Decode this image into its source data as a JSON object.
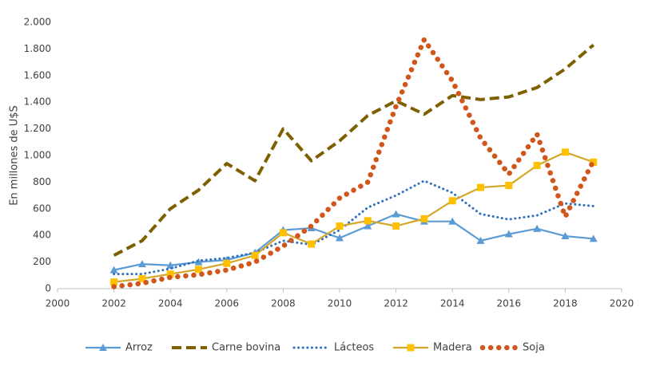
{
  "chart_data": {
    "type": "line",
    "ylabel": "En millones de U$S",
    "x": [
      2002,
      2003,
      2004,
      2005,
      2006,
      2007,
      2008,
      2009,
      2010,
      2011,
      2012,
      2013,
      2014,
      2015,
      2016,
      2017,
      2018,
      2019
    ],
    "series": [
      {
        "name": "Arroz",
        "color": "#5b9bd5",
        "style": "solid",
        "marker": "triangle",
        "values": [
          140,
          185,
          175,
          200,
          215,
          270,
          440,
          455,
          380,
          470,
          560,
          505,
          505,
          360,
          410,
          450,
          395,
          375
        ]
      },
      {
        "name": "Carne bovina",
        "color": "#7f6000",
        "style": "dashed",
        "marker": "none",
        "values": [
          250,
          360,
          600,
          740,
          940,
          810,
          1200,
          960,
          1110,
          1300,
          1410,
          1310,
          1450,
          1420,
          1440,
          1510,
          1650,
          1830
        ]
      },
      {
        "name": "Lácteos",
        "color": "#2e6fc0",
        "style": "dotted",
        "marker": "none",
        "values": [
          110,
          110,
          150,
          210,
          230,
          270,
          360,
          330,
          440,
          610,
          700,
          810,
          720,
          560,
          520,
          550,
          640,
          620
        ]
      },
      {
        "name": "Madera",
        "color": "#d4a62a",
        "marker_color": "#ffc000",
        "style": "solid",
        "marker": "square",
        "values": [
          50,
          75,
          110,
          145,
          190,
          250,
          420,
          335,
          470,
          510,
          470,
          525,
          660,
          760,
          775,
          925,
          1025,
          950
        ]
      },
      {
        "name": "Soja",
        "color": "#d0561b",
        "style": "round-dotted",
        "marker": "none",
        "values": [
          15,
          40,
          85,
          105,
          140,
          200,
          320,
          470,
          680,
          800,
          1370,
          1870,
          1560,
          1130,
          860,
          1160,
          540,
          960
        ]
      }
    ],
    "xlim": [
      2000,
      2020
    ],
    "xticks": [
      2000,
      2002,
      2004,
      2006,
      2008,
      2010,
      2012,
      2014,
      2016,
      2018,
      2020
    ],
    "ylim": [
      0,
      2000
    ],
    "yticks": [
      0,
      200,
      400,
      600,
      800,
      {
        "value": 1000,
        "label": "1.000"
      },
      {
        "value": 1200,
        "label": "1.200"
      },
      {
        "value": 1400,
        "label": "1.400"
      },
      {
        "value": 1600,
        "label": "1.600"
      },
      {
        "value": 1800,
        "label": "1.800"
      },
      {
        "value": 2000,
        "label": "2.000"
      }
    ],
    "grid": false,
    "legend": "bottom"
  }
}
